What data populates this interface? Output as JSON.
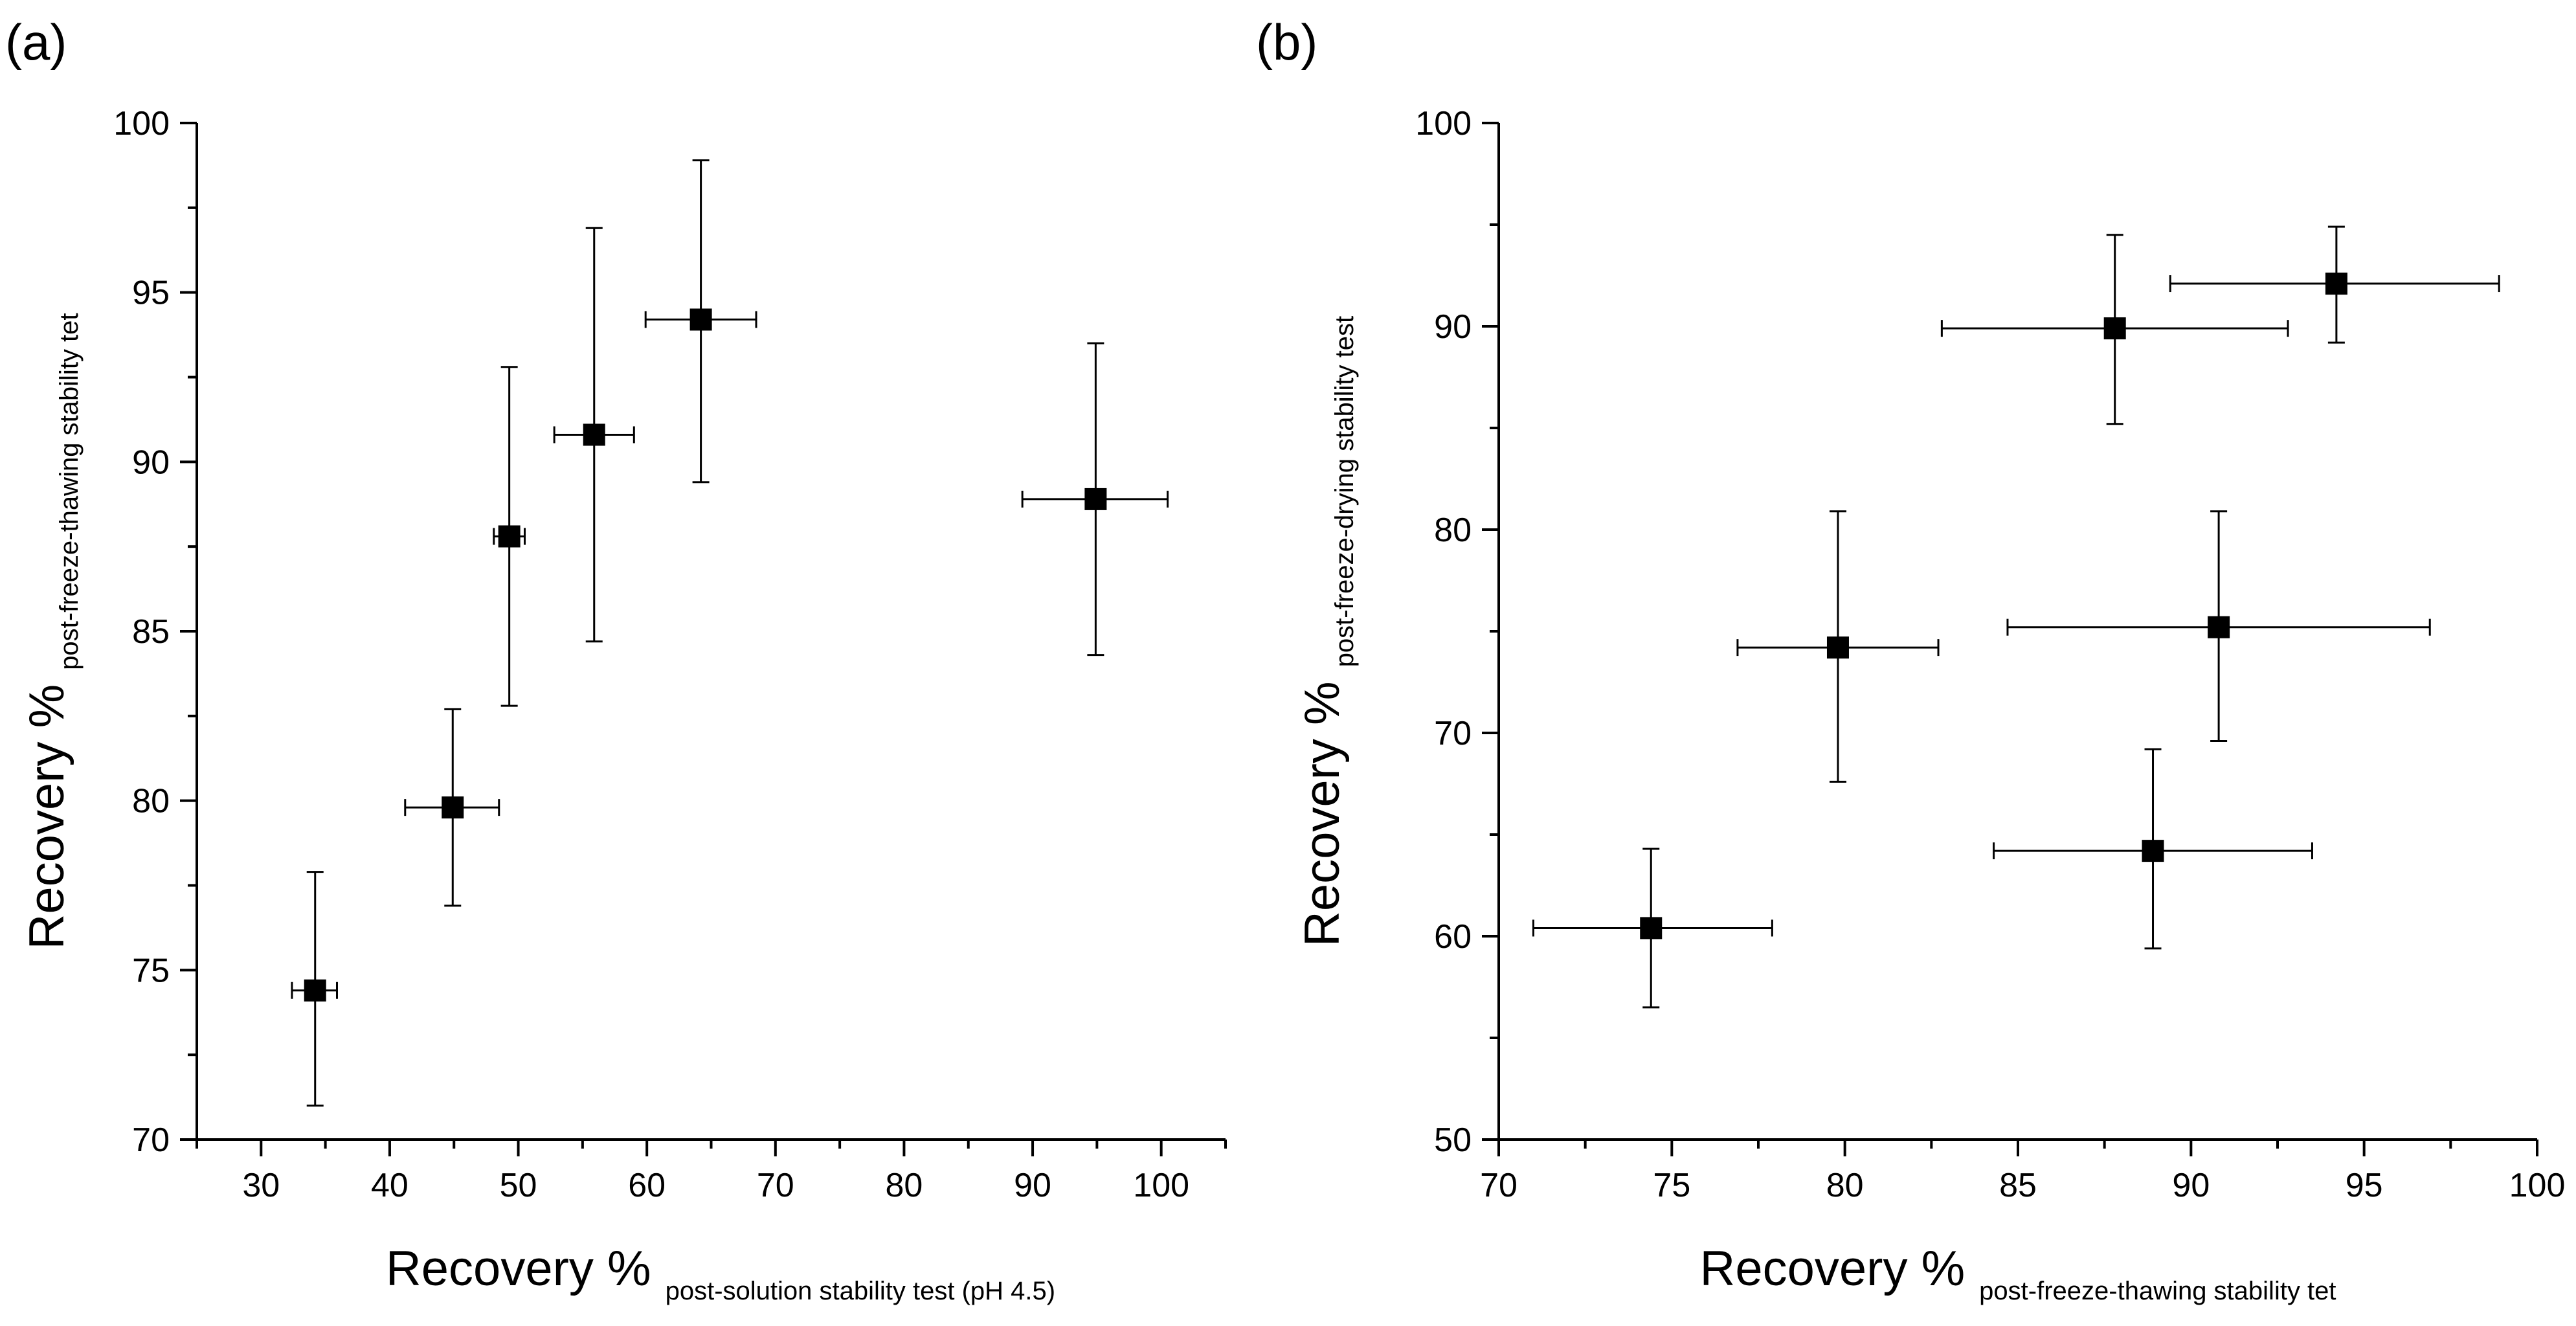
{
  "chart_data": [
    {
      "panel_label": "(a)",
      "type": "scatter",
      "xlabel": "Recovery %",
      "xlabel_sub": "post-solution stability test (pH 4.5)",
      "ylabel": "Recovery %",
      "ylabel_sub": "post-freeze-thawing stability tet",
      "xlim": [
        25,
        105
      ],
      "ylim": [
        70,
        100
      ],
      "xticks": [
        30,
        40,
        50,
        60,
        70,
        80,
        90,
        100
      ],
      "yticks": [
        70,
        75,
        80,
        85,
        90,
        95,
        100
      ],
      "grid": false,
      "points": [
        {
          "x": 34.2,
          "y": 74.4,
          "xerr": [
            32.4,
            35.9
          ],
          "yerr": [
            71.0,
            77.9
          ]
        },
        {
          "x": 44.9,
          "y": 79.8,
          "xerr": [
            41.2,
            48.5
          ],
          "yerr": [
            76.9,
            82.7
          ]
        },
        {
          "x": 49.3,
          "y": 87.8,
          "xerr": [
            48.1,
            50.5
          ],
          "yerr": [
            82.8,
            92.8
          ]
        },
        {
          "x": 55.9,
          "y": 90.8,
          "xerr": [
            52.8,
            59.0
          ],
          "yerr": [
            84.7,
            96.9
          ]
        },
        {
          "x": 64.2,
          "y": 94.2,
          "xerr": [
            59.9,
            68.5
          ],
          "yerr": [
            89.4,
            98.9
          ]
        },
        {
          "x": 94.9,
          "y": 88.9,
          "xerr": [
            89.2,
            100.5
          ],
          "yerr": [
            84.3,
            93.5
          ]
        }
      ]
    },
    {
      "panel_label": "(b)",
      "type": "scatter",
      "xlabel": "Recovery %",
      "xlabel_sub": "post-freeze-thawing stability tet",
      "ylabel": "Recovery %",
      "ylabel_sub": "post-freeze-drying stability test",
      "xlim": [
        70,
        100
      ],
      "ylim": [
        50,
        100
      ],
      "xticks": [
        70,
        75,
        80,
        85,
        90,
        95,
        100
      ],
      "yticks": [
        50,
        60,
        70,
        80,
        90,
        100
      ],
      "grid": false,
      "points": [
        {
          "x": 74.4,
          "y": 60.4,
          "xerr": [
            71.0,
            77.9
          ],
          "yerr": [
            56.5,
            64.3
          ]
        },
        {
          "x": 79.8,
          "y": 74.2,
          "xerr": [
            76.9,
            82.7
          ],
          "yerr": [
            67.6,
            80.9
          ]
        },
        {
          "x": 87.8,
          "y": 89.9,
          "xerr": [
            82.8,
            92.8
          ],
          "yerr": [
            85.2,
            94.5
          ]
        },
        {
          "x": 90.8,
          "y": 75.2,
          "xerr": [
            84.7,
            96.9
          ],
          "yerr": [
            69.6,
            80.9
          ]
        },
        {
          "x": 88.9,
          "y": 64.2,
          "xerr": [
            84.3,
            93.5
          ],
          "yerr": [
            59.4,
            69.2
          ]
        },
        {
          "x": 94.2,
          "y": 92.1,
          "xerr": [
            89.4,
            98.9
          ],
          "yerr": [
            89.2,
            94.9
          ]
        }
      ]
    }
  ]
}
